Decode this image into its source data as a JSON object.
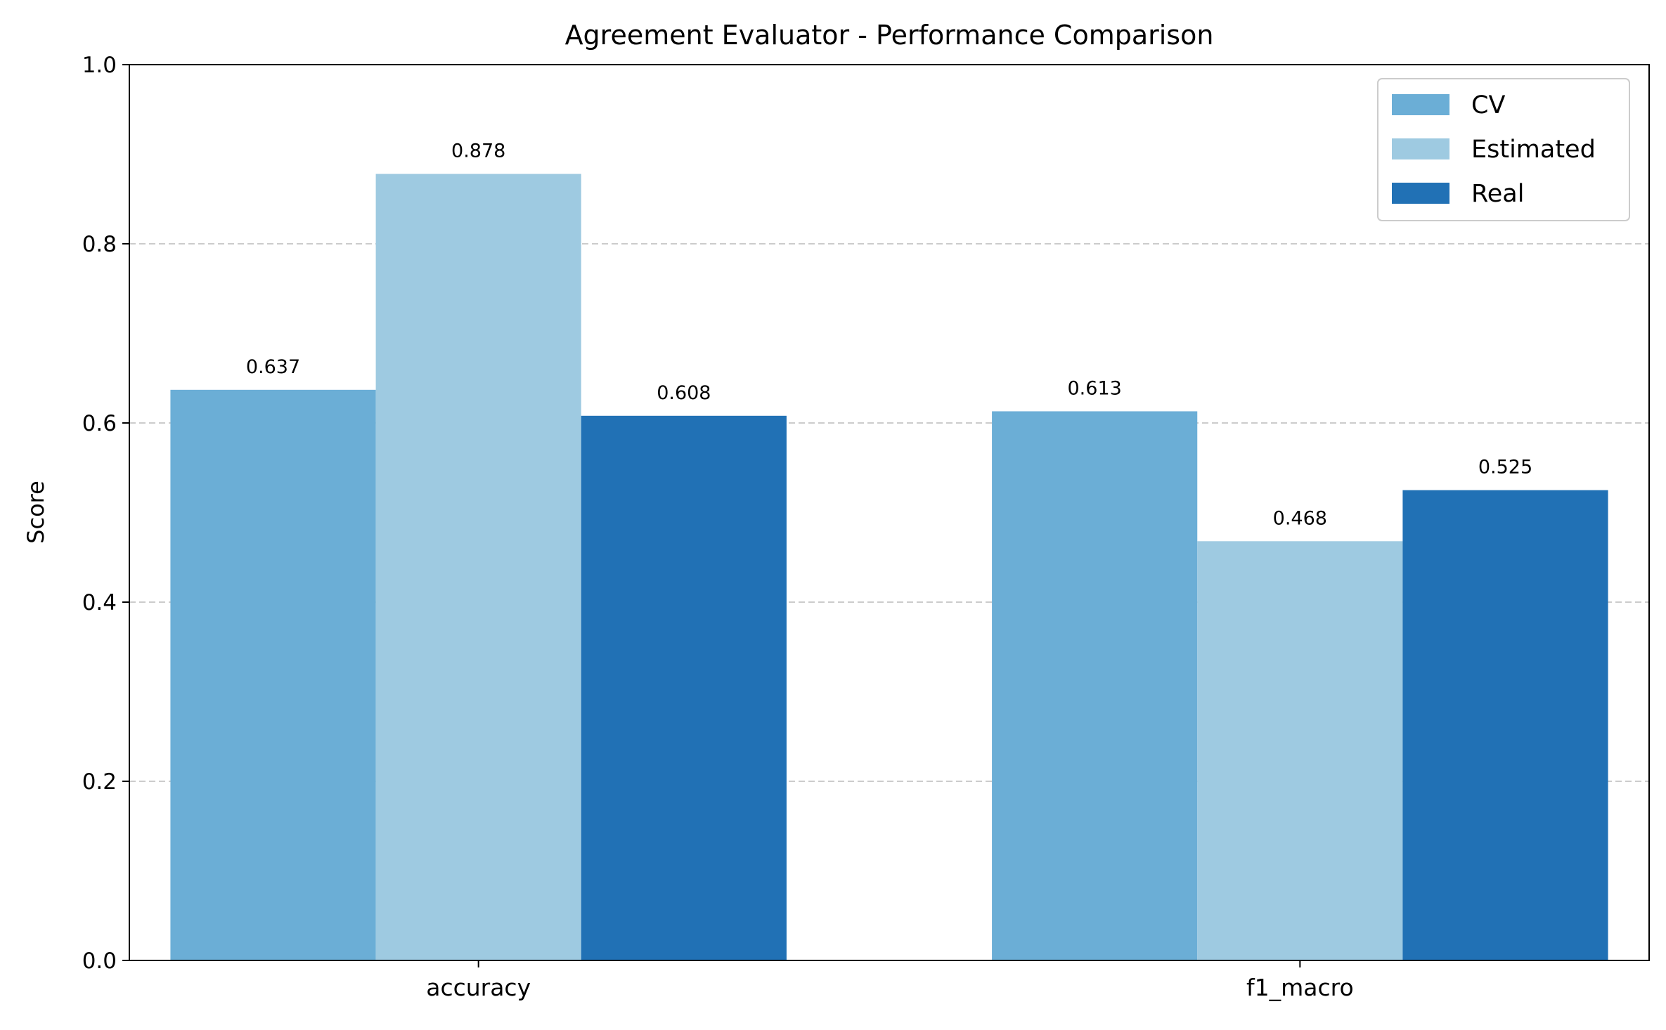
{
  "chart_data": {
    "type": "bar",
    "title": "Agreement Evaluator - Performance Comparison",
    "xlabel": "",
    "ylabel": "Score",
    "ylim": [
      0,
      1.0
    ],
    "yticks": [
      "0.0",
      "0.2",
      "0.4",
      "0.6",
      "0.8",
      "1.0"
    ],
    "grid": "y-dashed",
    "legend_position": "top-right",
    "categories": [
      "accuracy",
      "f1_macro"
    ],
    "series": [
      {
        "name": "CV",
        "color": "#6baed6",
        "values": [
          0.637,
          0.613
        ],
        "labels": [
          "0.637",
          "0.613"
        ]
      },
      {
        "name": "Estimated",
        "color": "#9ecae1",
        "values": [
          0.878,
          0.468
        ],
        "labels": [
          "0.878",
          "0.468"
        ]
      },
      {
        "name": "Real",
        "color": "#2171b5",
        "values": [
          0.608,
          0.525
        ],
        "labels": [
          "0.608",
          "0.525"
        ]
      }
    ]
  }
}
